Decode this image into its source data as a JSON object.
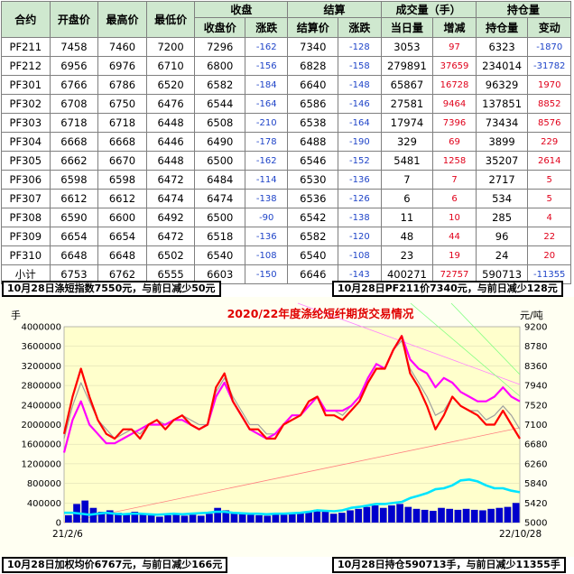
{
  "table": {
    "group_headers": {
      "contract": "合约",
      "open": "开盘价",
      "high": "最高价",
      "low": "最低价",
      "close": "收盘",
      "settle": "结算",
      "volume": "成交量（手）",
      "oi": "持仓量"
    },
    "sub_headers": {
      "close_price": "收盘价",
      "close_change": "涨跌",
      "settle_price": "结算价",
      "settle_change": "涨跌",
      "day_volume": "当日量",
      "volume_change": "增减",
      "oi_amount": "持仓量",
      "oi_change": "变动"
    },
    "rows": [
      {
        "contract": "PF211",
        "open": "7458",
        "high": "7460",
        "low": "7200",
        "close": "7296",
        "close_chg": "-162",
        "settle": "7340",
        "settle_chg": "-128",
        "volume": "3053",
        "vol_chg": "97",
        "oi": "6323",
        "oi_chg": "-1870"
      },
      {
        "contract": "PF212",
        "open": "6956",
        "high": "6976",
        "low": "6710",
        "close": "6800",
        "close_chg": "-156",
        "settle": "6828",
        "settle_chg": "-158",
        "volume": "279891",
        "vol_chg": "37659",
        "oi": "234014",
        "oi_chg": "-31782"
      },
      {
        "contract": "PF301",
        "open": "6766",
        "high": "6786",
        "low": "6520",
        "close": "6582",
        "close_chg": "-184",
        "settle": "6640",
        "settle_chg": "-148",
        "volume": "65867",
        "vol_chg": "16728",
        "oi": "96329",
        "oi_chg": "1970"
      },
      {
        "contract": "PF302",
        "open": "6708",
        "high": "6750",
        "low": "6476",
        "close": "6544",
        "close_chg": "-164",
        "settle": "6586",
        "settle_chg": "-146",
        "volume": "27581",
        "vol_chg": "9464",
        "oi": "137851",
        "oi_chg": "8852"
      },
      {
        "contract": "PF303",
        "open": "6718",
        "high": "6718",
        "low": "6448",
        "close": "6508",
        "close_chg": "-210",
        "settle": "6538",
        "settle_chg": "-164",
        "volume": "17974",
        "vol_chg": "7396",
        "oi": "73434",
        "oi_chg": "8576"
      },
      {
        "contract": "PF304",
        "open": "6668",
        "high": "6668",
        "low": "6446",
        "close": "6490",
        "close_chg": "-178",
        "settle": "6488",
        "settle_chg": "-190",
        "volume": "329",
        "vol_chg": "69",
        "oi": "3899",
        "oi_chg": "229"
      },
      {
        "contract": "PF305",
        "open": "6662",
        "high": "6670",
        "low": "6448",
        "close": "6500",
        "close_chg": "-162",
        "settle": "6546",
        "settle_chg": "-152",
        "volume": "5481",
        "vol_chg": "1258",
        "oi": "35207",
        "oi_chg": "2614"
      },
      {
        "contract": "PF306",
        "open": "6598",
        "high": "6598",
        "low": "6472",
        "close": "6484",
        "close_chg": "-114",
        "settle": "6530",
        "settle_chg": "-136",
        "volume": "7",
        "vol_chg": "7",
        "oi": "2717",
        "oi_chg": "5"
      },
      {
        "contract": "PF307",
        "open": "6612",
        "high": "6612",
        "low": "6474",
        "close": "6474",
        "close_chg": "-138",
        "settle": "6536",
        "settle_chg": "-126",
        "volume": "6",
        "vol_chg": "6",
        "oi": "534",
        "oi_chg": "5"
      },
      {
        "contract": "PF308",
        "open": "6590",
        "high": "6600",
        "low": "6492",
        "close": "6500",
        "close_chg": "-90",
        "settle": "6542",
        "settle_chg": "-138",
        "volume": "11",
        "vol_chg": "10",
        "oi": "285",
        "oi_chg": "4"
      },
      {
        "contract": "PF309",
        "open": "6654",
        "high": "6654",
        "low": "6472",
        "close": "6518",
        "close_chg": "-136",
        "settle": "6582",
        "settle_chg": "-120",
        "volume": "48",
        "vol_chg": "44",
        "oi": "96",
        "oi_chg": "22"
      },
      {
        "contract": "PF310",
        "open": "6648",
        "high": "6648",
        "low": "6502",
        "close": "6540",
        "close_chg": "-108",
        "settle": "6540",
        "settle_chg": "-108",
        "volume": "23",
        "vol_chg": "19",
        "oi": "24",
        "oi_chg": "20"
      },
      {
        "contract": "小计",
        "open": "6753",
        "high": "6762",
        "low": "6555",
        "close": "6603",
        "close_chg": "-150",
        "settle": "6646",
        "settle_chg": "-143",
        "volume": "400271",
        "vol_chg": "72757",
        "oi": "590713",
        "oi_chg": "-11355"
      }
    ]
  },
  "notes": {
    "index": "10月28日涤短指数7550元，与前日减少50元",
    "pf211": "10月28日PF211价7340元，与前日减少128元",
    "avg": "10月28日加权均价6767元，与前日减少166元",
    "oi": "10月28日持仓590713手，与前日减少11355手"
  },
  "colors": {
    "plot_bg": "#ffffcc",
    "outer_bg": "#fffff2",
    "header_bg": "#cfe8cf",
    "index_line": "#ff00ff",
    "price_line": "#ff0000",
    "oi_line": "#00e5ff",
    "volume_bar": "#0000cc"
  },
  "chart_data": {
    "type": "line",
    "title": "2020/22年度涤纶短纤期货交易情况",
    "left_unit": "手",
    "right_unit": "元/吨",
    "x_start_label": "21/2/6",
    "x_end_label": "22/10/28",
    "left_axis": {
      "min": 0,
      "max": 4000000,
      "ticks": [
        "0",
        "400000",
        "800000",
        "1200000",
        "1600000",
        "2000000",
        "2400000",
        "2800000",
        "3200000",
        "3600000",
        "4000000"
      ]
    },
    "right_axis": {
      "min": 5000,
      "max": 9200,
      "ticks": [
        "5000",
        "5420",
        "5840",
        "6260",
        "6680",
        "7100",
        "7520",
        "7940",
        "8360",
        "8780",
        "9200"
      ]
    },
    "series": [
      {
        "axis": "right",
        "color": "#ff0000",
        "values": [
          6900,
          7700,
          8300,
          7700,
          7200,
          6900,
          6800,
          7000,
          7000,
          6800,
          7100,
          7200,
          7000,
          7200,
          7300,
          7100,
          7000,
          7100,
          7900,
          8200,
          7600,
          7300,
          7000,
          7000,
          6800,
          6800,
          7100,
          7200,
          7300,
          7600,
          7700,
          7300,
          7300,
          7200,
          7400,
          7600,
          8000,
          8300,
          8300,
          8700,
          9000,
          8200,
          7900,
          7500,
          7000,
          7300,
          7700,
          7500,
          7400,
          7300,
          7100,
          7100,
          7400,
          7100,
          6800
        ]
      },
      {
        "axis": "right",
        "color": "#ff00ff",
        "values": [
          6500,
          7200,
          7600,
          7100,
          6900,
          6700,
          6700,
          6800,
          6900,
          7000,
          7100,
          7100,
          7100,
          7200,
          7200,
          7100,
          7000,
          7100,
          7700,
          8000,
          7600,
          7300,
          7000,
          6900,
          6800,
          6900,
          7100,
          7300,
          7300,
          7500,
          7700,
          7400,
          7400,
          7400,
          7500,
          7700,
          8100,
          8400,
          8300,
          8700,
          9000,
          8500,
          8300,
          8200,
          7900,
          8100,
          8000,
          7800,
          7700,
          7600,
          7600,
          7700,
          7900,
          7700,
          7600
        ]
      },
      {
        "axis": "right",
        "color": "#a0a0a0",
        "values": [
          6800,
          7500,
          8000,
          7600,
          7200,
          7000,
          6800,
          6900,
          7000,
          6900,
          7100,
          7200,
          7100,
          7200,
          7300,
          7200,
          7100,
          7100,
          7800,
          8100,
          7700,
          7400,
          7100,
          7100,
          6900,
          6900,
          7100,
          7300,
          7300,
          7600,
          7700,
          7400,
          7400,
          7300,
          7500,
          7700,
          8000,
          8300,
          8300,
          8700,
          8900,
          8300,
          8000,
          7700,
          7300,
          7400,
          7700,
          7500,
          7400,
          7400,
          7200,
          7300,
          7500,
          7300,
          7000
        ]
      },
      {
        "axis": "left",
        "color": "#00e5ff",
        "values": [
          200000,
          200000,
          180000,
          160000,
          180000,
          200000,
          180000,
          170000,
          180000,
          180000,
          170000,
          160000,
          170000,
          180000,
          170000,
          180000,
          190000,
          200000,
          220000,
          220000,
          200000,
          190000,
          180000,
          180000,
          170000,
          180000,
          180000,
          190000,
          200000,
          220000,
          250000,
          240000,
          230000,
          250000,
          300000,
          320000,
          350000,
          380000,
          380000,
          400000,
          420000,
          500000,
          550000,
          600000,
          680000,
          700000,
          760000,
          860000,
          880000,
          840000,
          760000,
          700000,
          700000,
          650000,
          620000
        ]
      },
      {
        "axis": "left",
        "color": "#0000cc",
        "values": [
          150000,
          380000,
          450000,
          300000,
          220000,
          250000,
          200000,
          180000,
          220000,
          180000,
          150000,
          120000,
          150000,
          160000,
          140000,
          160000,
          140000,
          180000,
          300000,
          250000,
          200000,
          180000,
          160000,
          150000,
          140000,
          160000,
          160000,
          180000,
          200000,
          220000,
          260000,
          220000,
          180000,
          200000,
          250000,
          280000,
          320000,
          350000,
          300000,
          350000,
          380000,
          320000,
          280000,
          260000,
          240000,
          300000,
          280000,
          260000,
          280000,
          260000,
          250000,
          280000,
          300000,
          320000,
          400000
        ]
      }
    ]
  }
}
